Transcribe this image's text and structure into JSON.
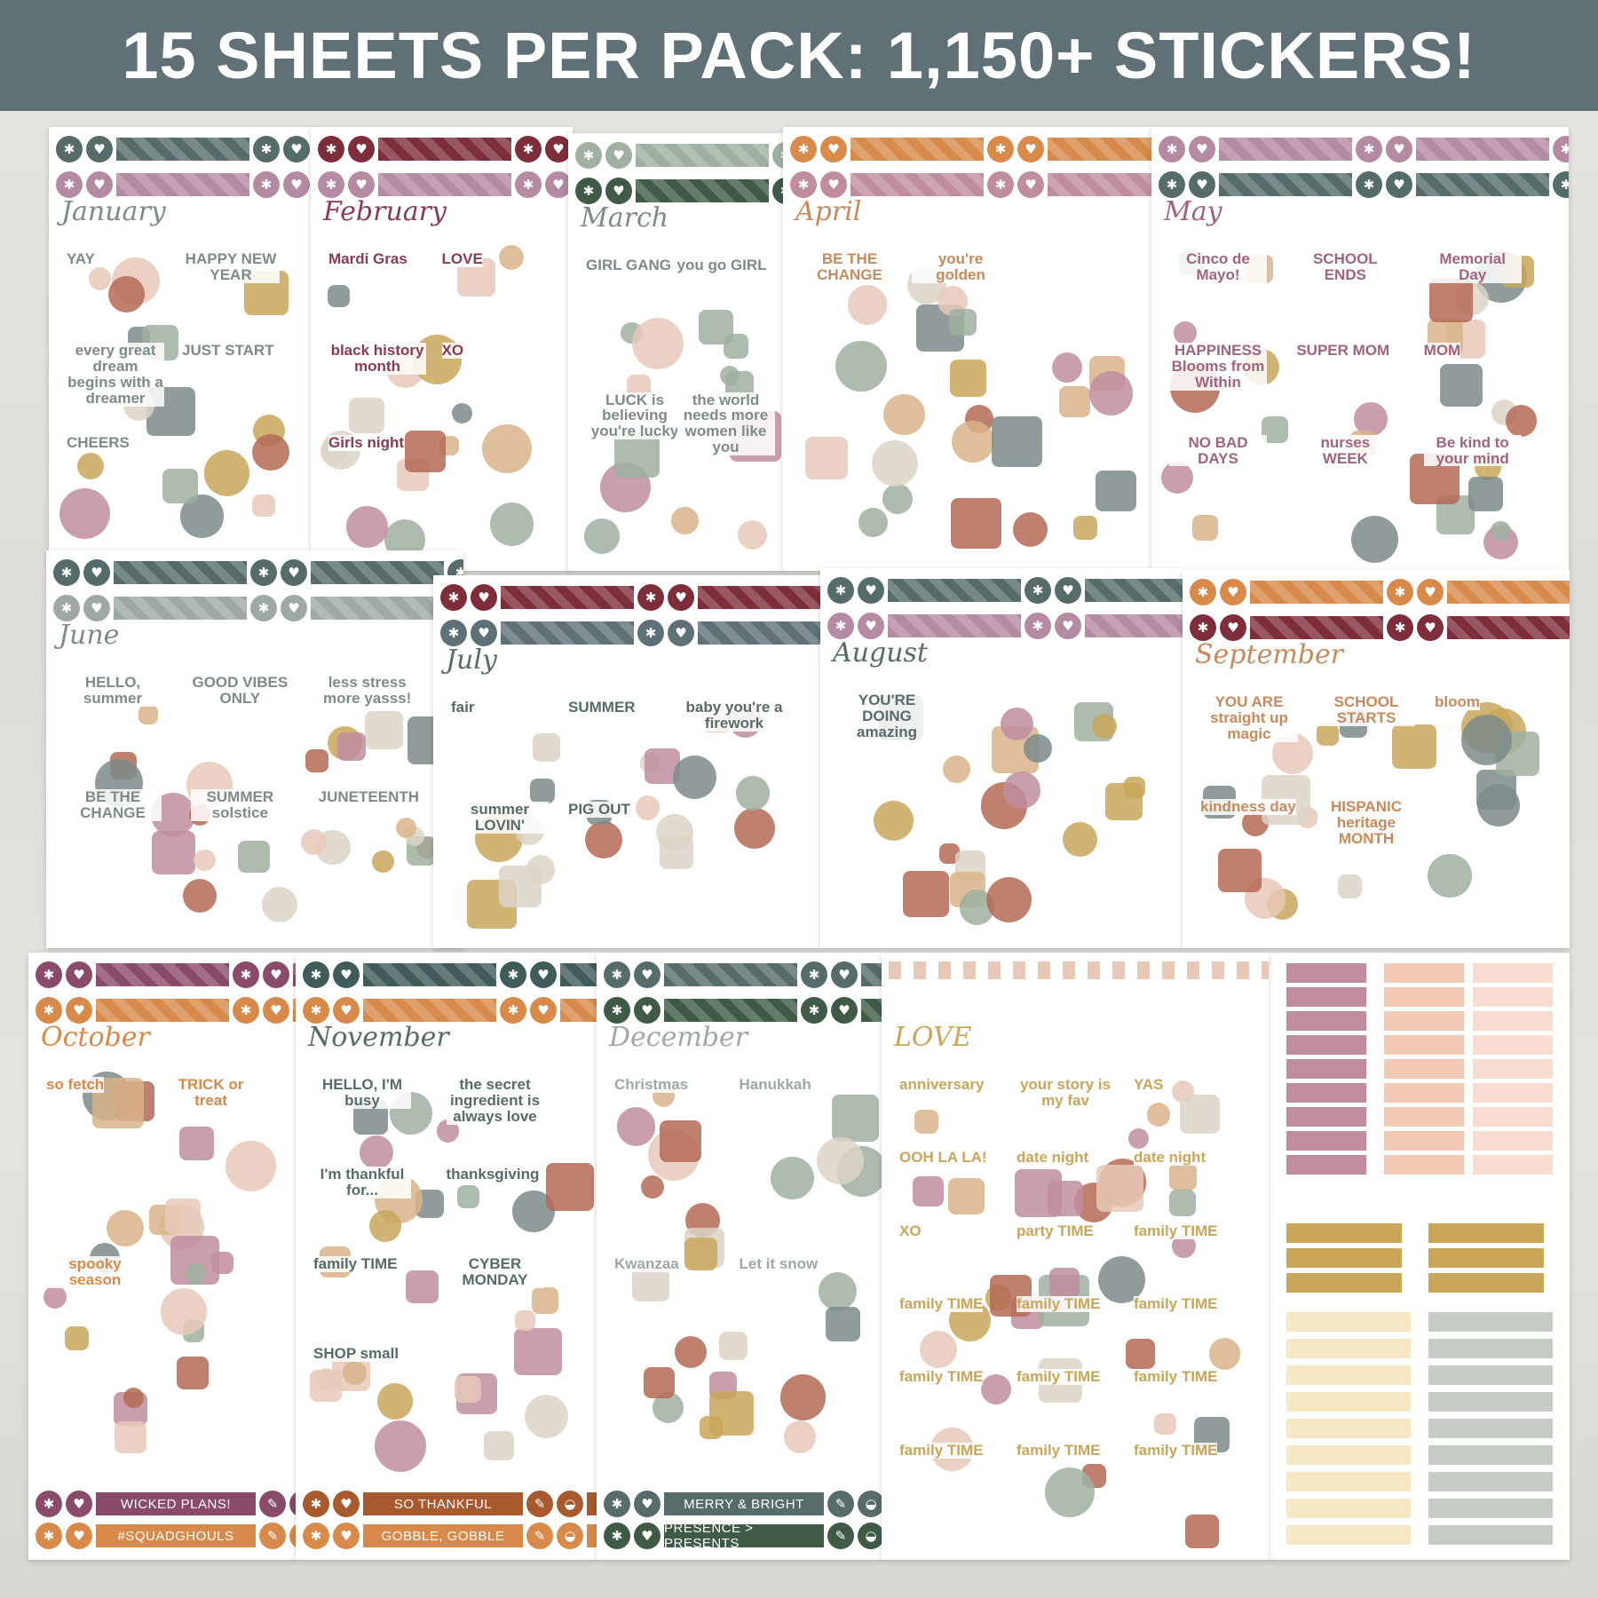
{
  "header": {
    "title": "15 SHEETS PER PACK: 1,150+ STICKERS!",
    "bg_color": "#5f7176"
  },
  "sheets": [
    {
      "month": "January",
      "colors": [
        "#566c6a",
        "#b58aa3"
      ],
      "title_color": "#7d8b8a",
      "stickers": [
        "YAY",
        "HAPPY NEW YEAR",
        "every great dream begins with a dreamer",
        "JUST START",
        "CHEERS"
      ]
    },
    {
      "month": "February",
      "colors": [
        "#7e2e3b",
        "#b58aa3"
      ],
      "title_color": "#8a3b52",
      "stickers": [
        "Mardi Gras",
        "LOVE",
        "black history month",
        "XO",
        "Girls night"
      ]
    },
    {
      "month": "March",
      "colors": [
        "#9fb0a0",
        "#3f5b46"
      ],
      "title_color": "#7d8b8a",
      "stickers": [
        "GIRL GANG",
        "you go GIRL",
        "LUCK is believing you're lucky",
        "the world needs more women like you"
      ]
    },
    {
      "month": "April",
      "colors": [
        "#d78a4a",
        "#c08d9f"
      ],
      "title_color": "#c88a5c",
      "stickers": [
        "BE THE CHANGE",
        "you're golden"
      ]
    },
    {
      "month": "May",
      "colors": [
        "#b58aa3",
        "#566c6a"
      ],
      "title_color": "#a0647f",
      "stickers": [
        "Cinco de Mayo!",
        "SCHOOL ENDS",
        "Memorial Day",
        "HAPPINESS Blooms from Within",
        "SUPER MOM",
        "MOM",
        "NO BAD DAYS",
        "nurses WEEK",
        "Be kind to your mind"
      ]
    },
    {
      "month": "June",
      "colors": [
        "#566c6a",
        "#9fa9a3"
      ],
      "title_color": "#7d8b8a",
      "stickers": [
        "HELLO, summer",
        "GOOD VIBES ONLY",
        "less stress more yasss!",
        "BE THE CHANGE",
        "SUMMER solstice",
        "JUNETEENTH"
      ]
    },
    {
      "month": "July",
      "colors": [
        "#7e2e3b",
        "#5f7176"
      ],
      "title_color": "#566c6a",
      "stickers": [
        "fair",
        "SUMMER",
        "baby you're a firework",
        "summer LOVIN'",
        "PIG OUT"
      ]
    },
    {
      "month": "August",
      "colors": [
        "#566c6a",
        "#b58aa3"
      ],
      "title_color": "#566c6a",
      "stickers": [
        "YOU'RE DOING amazing"
      ]
    },
    {
      "month": "September",
      "colors": [
        "#d78a4a",
        "#7e2e3b"
      ],
      "title_color": "#c88a5c",
      "stickers": [
        "YOU ARE straight up magic",
        "SCHOOL STARTS",
        "bloom",
        "kindness day",
        "HISPANIC heritage MONTH"
      ]
    },
    {
      "month": "October",
      "colors": [
        "#8a4a6a",
        "#d78a4a"
      ],
      "title_color": "#d78a4a",
      "stickers": [
        "so fetch",
        "TRICK or treat",
        "spooky season"
      ],
      "labels": [
        "WICKED PLANS!",
        "#SQUADGHOULS"
      ]
    },
    {
      "month": "November",
      "colors": [
        "#3f5b5a",
        "#d78a4a"
      ],
      "title_color": "#566c6a",
      "stickers": [
        "HELLO, I'M busy",
        "the secret ingredient is always love",
        "I'm thankful for...",
        "thanksgiving",
        "family TIME",
        "CYBER MONDAY",
        "SHOP small"
      ],
      "labels": [
        "SO THANKFUL",
        "GOBBLE, GOBBLE"
      ],
      "label_colors": [
        "#a85a2e",
        "#d78a4a"
      ]
    },
    {
      "month": "December",
      "colors": [
        "#566c6a",
        "#3f5b46"
      ],
      "title_color": "#9fa9a3",
      "stickers": [
        "Christmas",
        "Hanukkah",
        "Kwanzaa",
        "Let it snow"
      ],
      "labels": [
        "MERRY & BRIGHT",
        "PRESENCE > PRESENTS"
      ],
      "label_colors": [
        "#566c6a",
        "#3f5b46"
      ]
    },
    {
      "month": "LOVE",
      "colors": [],
      "title_color": "#c9a65a",
      "stickers": [
        "anniversary",
        "your story is my fav",
        "YAS",
        "OOH LA LA!",
        "date night",
        "date night",
        "XO",
        "party TIME",
        "family TIME",
        "family TIME",
        "family TIME",
        "family TIME",
        "family TIME",
        "family TIME",
        "family TIME",
        "family TIME",
        "family TIME",
        "family TIME"
      ]
    }
  ],
  "tab_colors": [
    "#c08d9f",
    "#f2c9b2",
    "#f7dccf",
    "#c9a65a",
    "#f7e7c2",
    "#c6cdc4"
  ]
}
